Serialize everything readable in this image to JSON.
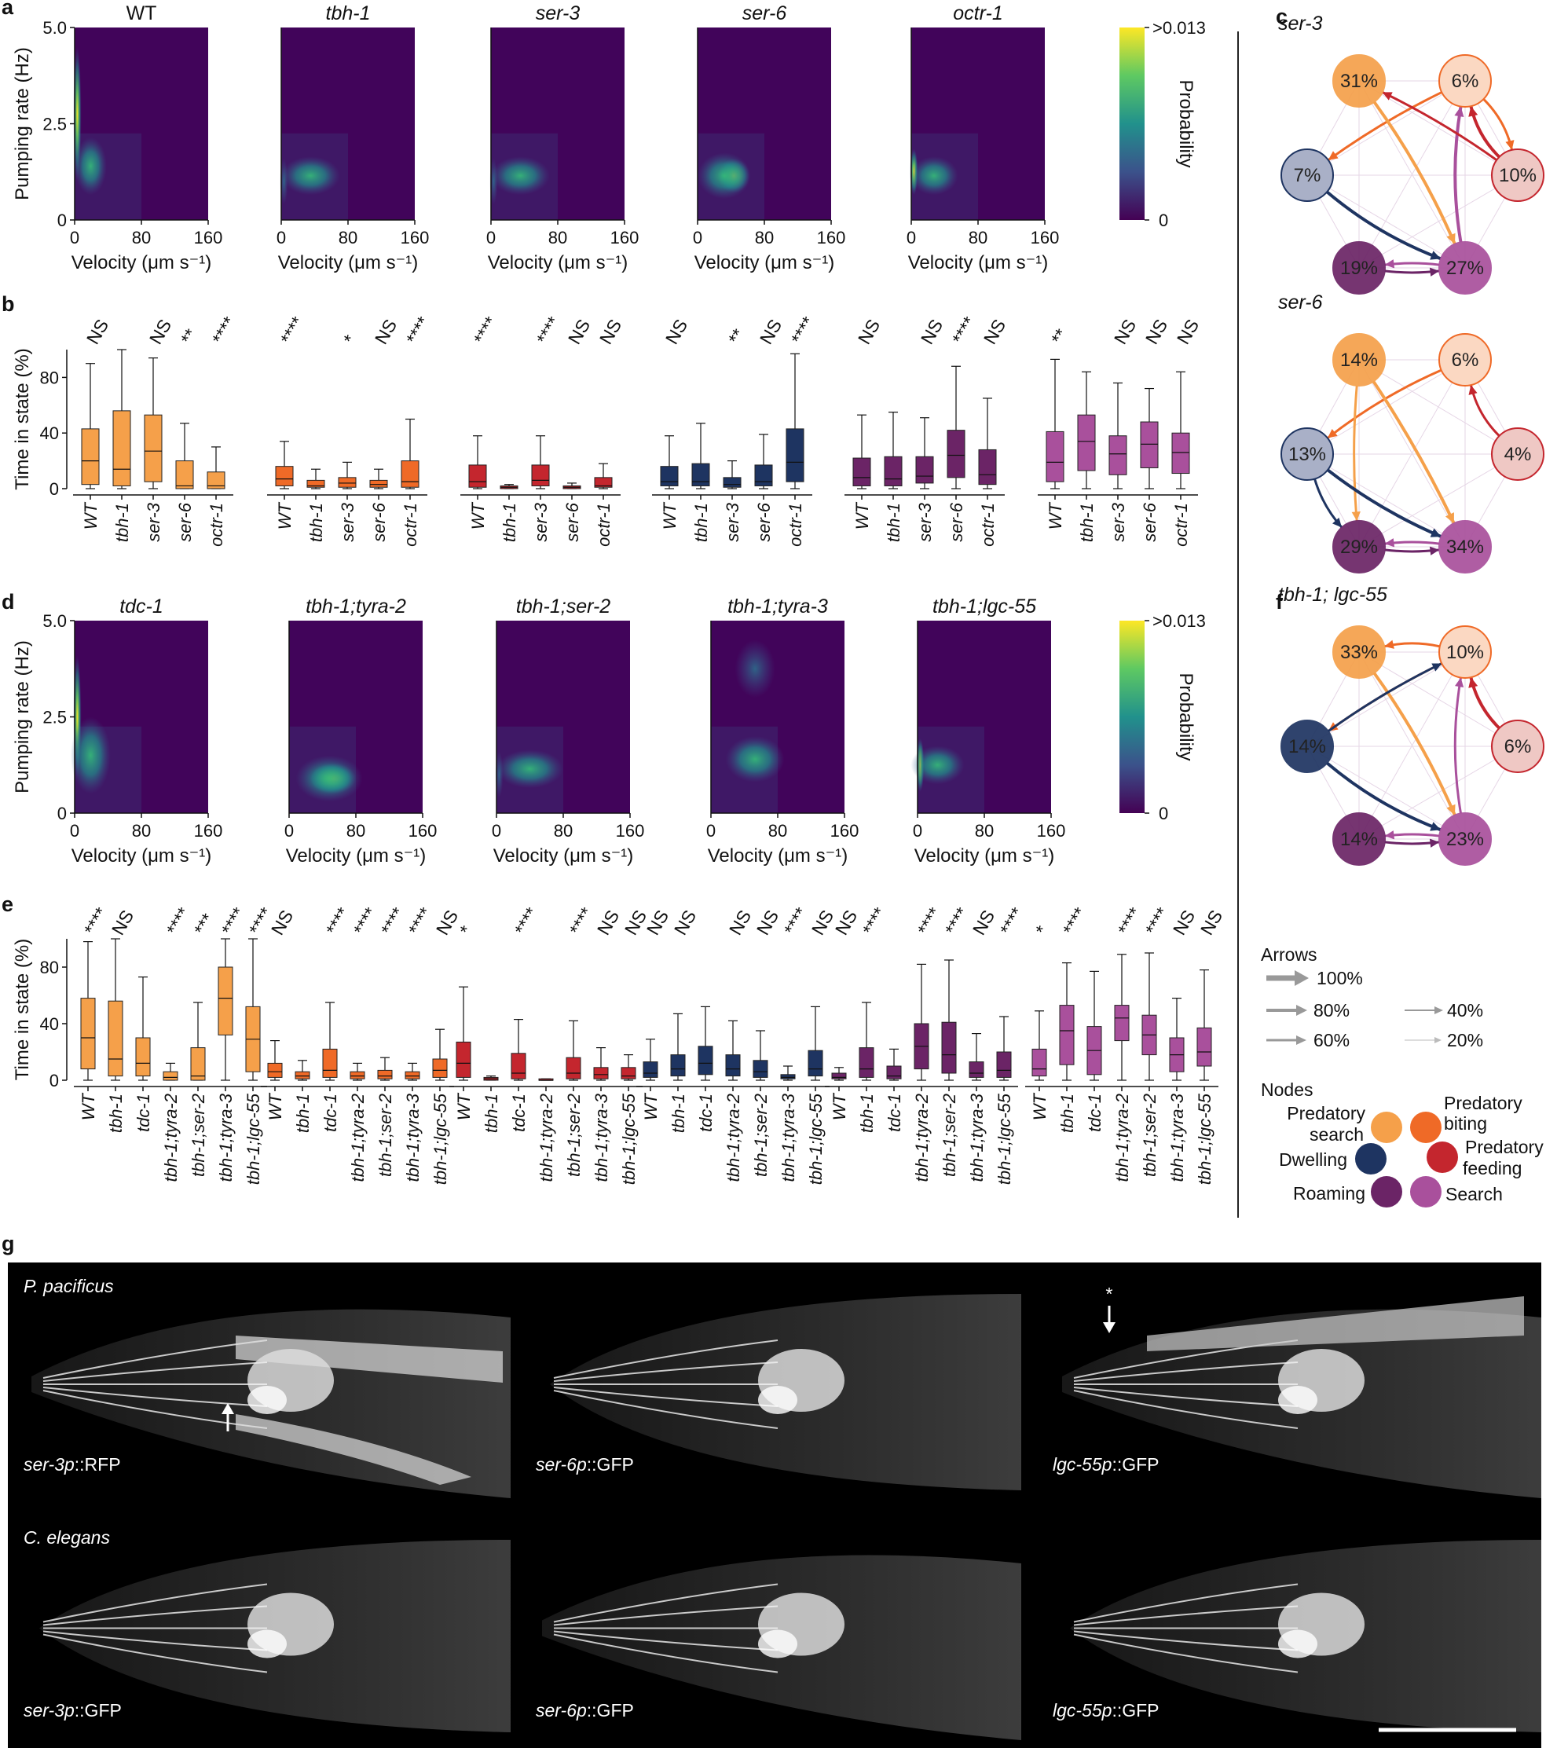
{
  "colors": {
    "predatory_search": "#F5A04A",
    "predatory_biting": "#EF6A27",
    "predatory_feeding": "#C4262E",
    "dwelling": "#1E3461",
    "roaming": "#6B2466",
    "search": "#A9509C"
  },
  "panel_letters": [
    "a",
    "b",
    "c",
    "d",
    "e",
    "f",
    "g"
  ],
  "heatmaps": {
    "ylabel": "Pumping rate (Hz)",
    "xlabel": "Velocity (μm s⁻¹)",
    "colorbar_label": "Probability",
    "colorbar_max": ">0.013",
    "colorbar_min": "0",
    "yticks": [
      "0",
      "2.5",
      "5.0"
    ],
    "xticks": [
      "0",
      "80",
      "160"
    ],
    "row_a": [
      "WT",
      "tbh-1",
      "ser-3",
      "ser-6",
      "octr-1"
    ],
    "row_d": [
      "tdc-1",
      "tbh-1;tyra-2",
      "tbh-1;ser-2",
      "tbh-1;tyra-3",
      "tbh-1;lgc-55"
    ]
  },
  "chart_data": [
    {
      "panel": "b",
      "type": "box",
      "ylabel": "Time in state (%)",
      "yticks": [
        "0",
        "40",
        "80"
      ],
      "ylim": [
        0,
        100
      ],
      "groups": [
        {
          "state": "predatory_search",
          "genotypes": [
            "WT",
            "tbh-1",
            "ser-3",
            "ser-6",
            "octr-1"
          ],
          "signif": [
            "NS",
            "",
            "NS",
            "**",
            "****"
          ],
          "boxes": [
            [
              0,
              3,
              20,
              43,
              90
            ],
            [
              0,
              2,
              14,
              56,
              100
            ],
            [
              0,
              5,
              27,
              53,
              94
            ],
            [
              0,
              0,
              2,
              20,
              47
            ],
            [
              0,
              0,
              2,
              12,
              30
            ]
          ]
        },
        {
          "state": "predatory_biting",
          "genotypes": [
            "WT",
            "tbh-1",
            "ser-3",
            "ser-6",
            "octr-1"
          ],
          "signif": [
            "****",
            "",
            "*",
            "NS",
            "****"
          ],
          "boxes": [
            [
              0,
              2,
              7,
              16,
              34
            ],
            [
              0,
              1,
              2,
              6,
              14
            ],
            [
              0,
              1,
              4,
              8,
              19
            ],
            [
              0,
              1,
              3,
              6,
              14
            ],
            [
              0,
              1,
              5,
              20,
              50
            ]
          ]
        },
        {
          "state": "predatory_feeding",
          "genotypes": [
            "WT",
            "tbh-1",
            "ser-3",
            "ser-6",
            "octr-1"
          ],
          "signif": [
            "****",
            "",
            "****",
            "NS",
            "NS"
          ],
          "boxes": [
            [
              0,
              1,
              5,
              17,
              38
            ],
            [
              0,
              0,
              1,
              2,
              3
            ],
            [
              0,
              2,
              6,
              17,
              38
            ],
            [
              0,
              0,
              1,
              2,
              4
            ],
            [
              0,
              1,
              2,
              8,
              18
            ]
          ]
        },
        {
          "state": "dwelling",
          "genotypes": [
            "WT",
            "tbh-1",
            "ser-3",
            "ser-6",
            "octr-1"
          ],
          "signif": [
            "NS",
            "",
            "**",
            "NS",
            "****"
          ],
          "boxes": [
            [
              0,
              2,
              5,
              16,
              38
            ],
            [
              0,
              2,
              5,
              18,
              47
            ],
            [
              0,
              1,
              3,
              8,
              20
            ],
            [
              0,
              2,
              5,
              17,
              39
            ],
            [
              0,
              5,
              19,
              43,
              97
            ]
          ]
        },
        {
          "state": "roaming",
          "genotypes": [
            "WT",
            "tbh-1",
            "ser-3",
            "ser-6",
            "octr-1"
          ],
          "signif": [
            "NS",
            "",
            "NS",
            "****",
            "NS"
          ],
          "boxes": [
            [
              0,
              2,
              8,
              22,
              53
            ],
            [
              0,
              2,
              7,
              23,
              55
            ],
            [
              0,
              4,
              9,
              23,
              51
            ],
            [
              0,
              8,
              24,
              42,
              88
            ],
            [
              0,
              3,
              10,
              28,
              65
            ]
          ]
        },
        {
          "state": "search",
          "genotypes": [
            "WT",
            "tbh-1",
            "ser-3",
            "ser-6",
            "octr-1"
          ],
          "signif": [
            "**",
            "",
            "NS",
            "NS",
            "NS"
          ],
          "boxes": [
            [
              0,
              5,
              19,
              41,
              93
            ],
            [
              0,
              13,
              34,
              53,
              84
            ],
            [
              0,
              10,
              25,
              38,
              76
            ],
            [
              0,
              15,
              32,
              48,
              72
            ],
            [
              0,
              11,
              26,
              40,
              84
            ]
          ]
        }
      ]
    },
    {
      "panel": "e",
      "type": "box",
      "ylabel": "Time in state (%)",
      "yticks": [
        "0",
        "40",
        "80"
      ],
      "ylim": [
        0,
        100
      ],
      "groups": [
        {
          "state": "predatory_search",
          "genotypes": [
            "WT",
            "tbh-1",
            "tdc-1",
            "tbh-1;tyra-2",
            "tbh-1;ser-2",
            "tbh-1;tyra-3",
            "tbh-1;lgc-55"
          ],
          "signif": [
            "****",
            "NS",
            "",
            "****",
            "***",
            "****",
            "****"
          ],
          "boxes": [
            [
              0,
              8,
              30,
              58,
              98
            ],
            [
              0,
              3,
              15,
              56,
              100
            ],
            [
              0,
              3,
              12,
              30,
              73
            ],
            [
              0,
              0,
              2,
              6,
              12
            ],
            [
              0,
              0,
              3,
              23,
              55
            ],
            [
              0,
              32,
              58,
              80,
              100
            ],
            [
              0,
              6,
              29,
              52,
              100
            ]
          ]
        },
        {
          "state": "predatory_biting",
          "genotypes": [
            "WT",
            "tbh-1",
            "tdc-1",
            "tbh-1;tyra-2",
            "tbh-1;ser-2",
            "tbh-1;tyra-3",
            "tbh-1;lgc-55"
          ],
          "signif": [
            "NS",
            "",
            "****",
            "****",
            "****",
            "****",
            "NS"
          ],
          "boxes": [
            [
              0,
              2,
              6,
              12,
              28
            ],
            [
              0,
              1,
              3,
              6,
              14
            ],
            [
              0,
              2,
              7,
              22,
              55
            ],
            [
              0,
              1,
              3,
              6,
              12
            ],
            [
              0,
              1,
              3,
              7,
              16
            ],
            [
              0,
              1,
              3,
              6,
              12
            ],
            [
              0,
              2,
              7,
              15,
              36
            ]
          ]
        },
        {
          "state": "predatory_feeding",
          "genotypes": [
            "WT",
            "tbh-1",
            "tdc-1",
            "tbh-1;tyra-2",
            "tbh-1;ser-2",
            "tbh-1;tyra-3",
            "tbh-1;lgc-55"
          ],
          "signif": [
            "*",
            "",
            "****",
            "",
            "****",
            "NS",
            "NS"
          ],
          "boxes": [
            [
              0,
              2,
              12,
              27,
              66
            ],
            [
              0,
              0,
              1,
              2,
              3
            ],
            [
              0,
              1,
              5,
              19,
              43
            ],
            [
              0,
              0,
              0,
              1,
              1
            ],
            [
              0,
              1,
              5,
              16,
              42
            ],
            [
              0,
              1,
              4,
              9,
              23
            ],
            [
              0,
              1,
              3,
              9,
              18
            ]
          ]
        },
        {
          "state": "dwelling",
          "genotypes": [
            "WT",
            "tbh-1",
            "tdc-1",
            "tbh-1;tyra-2",
            "tbh-1;ser-2",
            "tbh-1;tyra-3",
            "tbh-1;lgc-55"
          ],
          "signif": [
            "NS",
            "NS",
            "",
            "NS",
            "NS",
            "****",
            "NS"
          ],
          "boxes": [
            [
              0,
              2,
              5,
              13,
              29
            ],
            [
              0,
              3,
              8,
              18,
              47
            ],
            [
              0,
              4,
              12,
              24,
              52
            ],
            [
              0,
              3,
              8,
              18,
              42
            ],
            [
              0,
              2,
              6,
              14,
              35
            ],
            [
              0,
              1,
              2,
              4,
              10
            ],
            [
              0,
              3,
              8,
              21,
              52
            ]
          ]
        },
        {
          "state": "roaming",
          "genotypes": [
            "WT",
            "tbh-1",
            "tdc-1",
            "tbh-1;tyra-2",
            "tbh-1;ser-2",
            "tbh-1;tyra-3",
            "tbh-1;lgc-55"
          ],
          "signif": [
            "NS",
            "****",
            "",
            "****",
            "****",
            "NS",
            "****"
          ],
          "boxes": [
            [
              0,
              1,
              2,
              5,
              9
            ],
            [
              0,
              2,
              8,
              23,
              55
            ],
            [
              0,
              1,
              3,
              10,
              22
            ],
            [
              0,
              8,
              24,
              40,
              82
            ],
            [
              0,
              5,
              18,
              41,
              85
            ],
            [
              0,
              2,
              5,
              13,
              33
            ],
            [
              0,
              2,
              7,
              20,
              45
            ]
          ]
        },
        {
          "state": "search",
          "genotypes": [
            "WT",
            "tbh-1",
            "tdc-1",
            "tbh-1;tyra-2",
            "tbh-1;ser-2",
            "tbh-1;tyra-3",
            "tbh-1;lgc-55"
          ],
          "signif": [
            "*",
            "****",
            "",
            "****",
            "****",
            "NS",
            "NS"
          ],
          "boxes": [
            [
              0,
              3,
              8,
              22,
              49
            ],
            [
              0,
              11,
              35,
              53,
              83
            ],
            [
              0,
              4,
              21,
              38,
              77
            ],
            [
              0,
              28,
              44,
              53,
              89
            ],
            [
              0,
              18,
              32,
              46,
              90
            ],
            [
              0,
              6,
              18,
              30,
              58
            ],
            [
              0,
              10,
              20,
              37,
              78
            ]
          ]
        }
      ]
    }
  ],
  "networks": [
    {
      "panel": "c",
      "title": "ser-3",
      "nodes": {
        "predatory_search": "31%",
        "predatory_biting": "6%",
        "predatory_feeding": "10%",
        "search": "27%",
        "roaming": "19%",
        "dwelling": "7%"
      }
    },
    {
      "panel": "",
      "title": "ser-6",
      "nodes": {
        "predatory_search": "14%",
        "predatory_biting": "6%",
        "predatory_feeding": "4%",
        "search": "34%",
        "roaming": "29%",
        "dwelling": "13%"
      }
    },
    {
      "panel": "f",
      "title": "tbh-1; lgc-55",
      "nodes": {
        "predatory_search": "33%",
        "predatory_biting": "10%",
        "predatory_feeding": "6%",
        "search": "23%",
        "roaming": "14%",
        "dwelling": "14%"
      }
    }
  ],
  "legend": {
    "arrows_title": "Arrows",
    "arrows": [
      "100%",
      "80%",
      "60%",
      "40%",
      "20%"
    ],
    "nodes_title": "Nodes",
    "nodes": {
      "predatory_search": "Predatory search",
      "predatory_biting": "Predatory biting",
      "predatory_feeding": "Predatory feeding",
      "dwelling": "Dwelling",
      "roaming": "Roaming",
      "search": "Search"
    }
  },
  "micrographs": {
    "species_top": "P. pacificus",
    "species_bottom": "C. elegans",
    "star": "*",
    "labels_top": [
      "ser-3p::RFP",
      "ser-6p::GFP",
      "lgc-55p::GFP"
    ],
    "labels_bottom": [
      "ser-3p::GFP",
      "ser-6p::GFP",
      "lgc-55p::GFP"
    ]
  }
}
